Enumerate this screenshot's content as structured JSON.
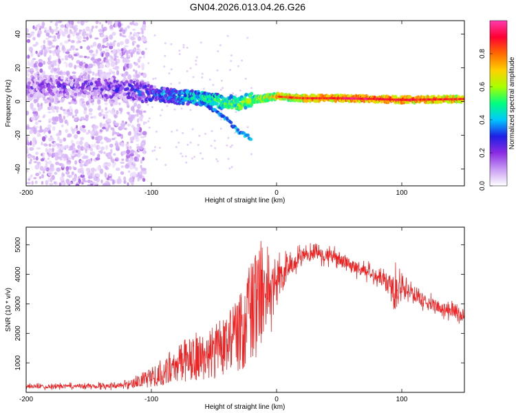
{
  "title": "GN04.2026.013.04.26.G26",
  "chart_data": [
    {
      "type": "heatmap",
      "title": "GN04.2026.013.04.26.G26",
      "xlabel": "Height of straight line (km)",
      "ylabel": "Frequency (Hz)",
      "xlim": [
        -200,
        150
      ],
      "ylim": [
        -50,
        48
      ],
      "xticks": [
        "-200",
        "-100",
        "0",
        "100"
      ],
      "yticks": [
        "40",
        "20",
        "0",
        "-20",
        "-40"
      ],
      "colorbar": {
        "label": "Normalized spectral amplitude",
        "range": [
          0,
          1
        ],
        "ticks": [
          "0.0",
          "0.2",
          "0.4",
          "0.6",
          "0.8"
        ],
        "colors": [
          "#ffffff",
          "#c99cf5",
          "#8a2be2",
          "#1e1ee6",
          "#00c8ff",
          "#00ff7f",
          "#a8ff00",
          "#ffd000",
          "#ff6a00",
          "#ff0030",
          "#ff3ab0"
        ]
      },
      "ridge": {
        "x": [
          -200,
          -160,
          -120,
          -100,
          -80,
          -60,
          -45,
          -30,
          -20,
          -10,
          0,
          20,
          50,
          80,
          100,
          150
        ],
        "y": [
          9,
          9,
          7,
          5,
          3,
          2,
          0,
          -1,
          1,
          2,
          3,
          2,
          2,
          1.5,
          1,
          1.5
        ],
        "amplitude": [
          0.15,
          0.18,
          0.22,
          0.3,
          0.4,
          0.45,
          0.5,
          0.55,
          0.6,
          0.65,
          0.7,
          0.75,
          0.8,
          0.82,
          0.8,
          0.75
        ]
      },
      "branch": {
        "x": [
          -62,
          -50,
          -40,
          -34,
          -30,
          -25,
          -20
        ],
        "y": [
          0,
          -5,
          -10,
          -15,
          -18,
          -20,
          -22
        ]
      }
    },
    {
      "type": "line",
      "xlabel": "Height of straight line (km)",
      "ylabel": "SNR (10 * v/v)",
      "xlim": [
        -200,
        150
      ],
      "ylim": [
        0,
        5600
      ],
      "xticks": [
        "-200",
        "-100",
        "0",
        "100"
      ],
      "yticks": [
        "1000",
        "2000",
        "3000",
        "4000",
        "5000"
      ],
      "line_color": "#ee2222",
      "series": [
        {
          "name": "SNR",
          "x": [
            -200,
            -180,
            -160,
            -140,
            -120,
            -110,
            -100,
            -90,
            -80,
            -70,
            -60,
            -50,
            -40,
            -30,
            -20,
            -10,
            0,
            10,
            20,
            30,
            40,
            50,
            60,
            70,
            80,
            90,
            95,
            100,
            110,
            120,
            130,
            140,
            150
          ],
          "values": [
            200,
            200,
            210,
            220,
            240,
            350,
            500,
            700,
            900,
            1100,
            1200,
            1300,
            1500,
            1900,
            2600,
            3200,
            3700,
            4200,
            4550,
            4700,
            4650,
            4500,
            4300,
            4100,
            3950,
            3800,
            3300,
            3600,
            3300,
            3050,
            2900,
            2750,
            2600
          ],
          "noise": [
            80,
            80,
            80,
            90,
            110,
            180,
            300,
            450,
            650,
            800,
            900,
            1000,
            1200,
            1500,
            1600,
            1400,
            800,
            400,
            300,
            250,
            250,
            250,
            250,
            250,
            250,
            300,
            800,
            300,
            250,
            250,
            250,
            250,
            250
          ]
        }
      ]
    }
  ]
}
